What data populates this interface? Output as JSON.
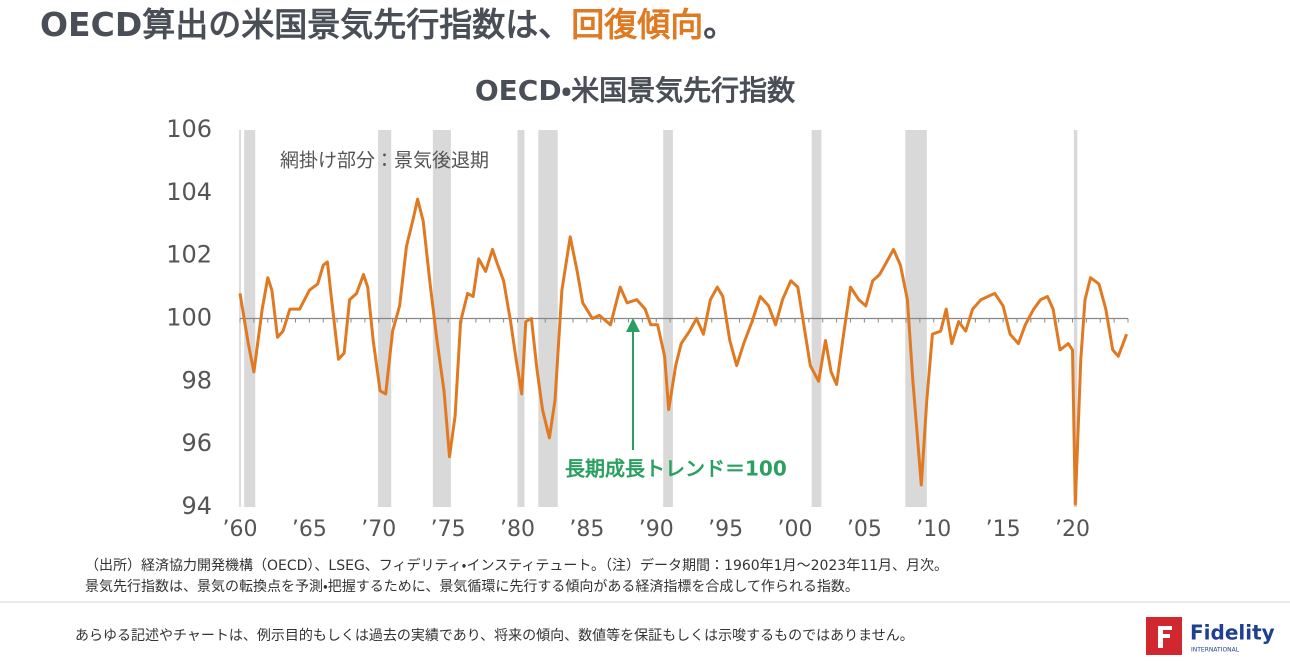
{
  "header": {
    "title_main": "OECD算出の米国景気先行指数は、",
    "title_highlight": "回復傾向",
    "title_end": "。"
  },
  "chart_data": {
    "type": "line",
    "title": "OECD・米国景気先行指数",
    "shading_note": "網掛け部分：景気後退期",
    "trend_note": "長期成長トレンド＝100",
    "reference_line": 100,
    "color": "#e07a22",
    "recession_color": "#d9d9d9",
    "recessions": [
      [
        1960.3,
        1961.1
      ],
      [
        1969.95,
        1970.9
      ],
      [
        1973.9,
        1975.2
      ],
      [
        1980.0,
        1980.5
      ],
      [
        1981.5,
        1982.9
      ],
      [
        1990.5,
        1991.2
      ],
      [
        2001.2,
        2001.9
      ],
      [
        2007.95,
        2009.5
      ],
      [
        2020.1,
        2020.35
      ]
    ],
    "x": [
      1960.0,
      1960.6,
      1961.0,
      1961.6,
      1962.0,
      1962.3,
      1962.7,
      1963.1,
      1963.6,
      1964.3,
      1965.0,
      1965.6,
      1966.0,
      1966.3,
      1966.6,
      1967.1,
      1967.5,
      1967.9,
      1968.4,
      1968.9,
      1969.2,
      1969.6,
      1970.1,
      1970.5,
      1971.0,
      1971.5,
      1972.0,
      1972.5,
      1972.8,
      1973.2,
      1973.7,
      1974.2,
      1974.7,
      1975.1,
      1975.5,
      1975.9,
      1976.4,
      1976.8,
      1977.2,
      1977.7,
      1978.2,
      1978.5,
      1979.0,
      1979.5,
      1979.9,
      1980.3,
      1980.6,
      1981.0,
      1981.4,
      1981.8,
      1982.3,
      1982.7,
      1983.2,
      1983.8,
      1984.3,
      1984.7,
      1985.4,
      1985.9,
      1986.7,
      1987.4,
      1987.9,
      1988.6,
      1989.2,
      1989.6,
      1990.1,
      1990.6,
      1990.9,
      1991.4,
      1991.8,
      1992.4,
      1992.9,
      1993.4,
      1993.9,
      1994.4,
      1994.8,
      1995.3,
      1995.8,
      1996.3,
      1996.9,
      1997.5,
      1998.1,
      1998.6,
      1999.1,
      1999.7,
      2000.2,
      2000.6,
      2001.1,
      2001.7,
      2002.2,
      2002.6,
      2003.0,
      2003.5,
      2004.0,
      2004.6,
      2005.1,
      2005.6,
      2006.1,
      2006.6,
      2007.1,
      2007.6,
      2008.1,
      2008.5,
      2008.9,
      2009.1,
      2009.5,
      2009.9,
      2010.5,
      2010.9,
      2011.3,
      2011.8,
      2012.3,
      2012.8,
      2013.4,
      2013.9,
      2014.4,
      2015.0,
      2015.5,
      2016.1,
      2016.6,
      2017.2,
      2017.7,
      2018.2,
      2018.6,
      2019.1,
      2019.7,
      2020.0,
      2020.2,
      2020.6,
      2020.9,
      2021.3,
      2021.9,
      2022.4,
      2022.9,
      2023.3,
      2023.9
    ],
    "values": [
      100.8,
      99.2,
      98.3,
      100.3,
      101.3,
      100.9,
      99.4,
      99.6,
      100.3,
      100.3,
      100.9,
      101.1,
      101.7,
      101.8,
      100.6,
      98.7,
      98.9,
      100.6,
      100.8,
      101.4,
      101.0,
      99.3,
      97.7,
      97.6,
      99.6,
      100.4,
      102.3,
      103.2,
      103.8,
      103.1,
      101.1,
      99.3,
      97.7,
      95.6,
      96.9,
      99.9,
      100.8,
      100.7,
      101.9,
      101.5,
      102.2,
      101.8,
      101.2,
      99.9,
      98.7,
      97.6,
      99.9,
      100.0,
      98.4,
      97.1,
      96.2,
      97.4,
      100.9,
      102.6,
      101.5,
      100.5,
      100.0,
      100.1,
      99.8,
      101.0,
      100.5,
      100.6,
      100.3,
      99.8,
      99.8,
      98.8,
      97.1,
      98.5,
      99.2,
      99.6,
      100.0,
      99.5,
      100.6,
      101.0,
      100.7,
      99.3,
      98.5,
      99.2,
      99.9,
      100.7,
      100.4,
      99.8,
      100.6,
      101.2,
      101.0,
      99.9,
      98.5,
      98.0,
      99.3,
      98.3,
      97.9,
      99.5,
      101.0,
      100.6,
      100.4,
      101.2,
      101.4,
      101.8,
      102.2,
      101.7,
      100.6,
      98.0,
      95.8,
      94.7,
      97.4,
      99.5,
      99.6,
      100.3,
      99.2,
      99.9,
      99.6,
      100.3,
      100.6,
      100.7,
      100.8,
      100.4,
      99.5,
      99.2,
      99.8,
      100.3,
      100.6,
      100.7,
      100.3,
      99.0,
      99.2,
      99.0,
      94.1,
      98.7,
      100.6,
      101.3,
      101.1,
      100.3,
      99.0,
      98.8,
      99.5
    ],
    "xlim": [
      1960,
      2024
    ],
    "xticks": [
      {
        "value": 1960,
        "label": "’60"
      },
      {
        "value": 1965,
        "label": "’65"
      },
      {
        "value": 1970,
        "label": "’70"
      },
      {
        "value": 1975,
        "label": "’75"
      },
      {
        "value": 1980,
        "label": "’80"
      },
      {
        "value": 1985,
        "label": "’85"
      },
      {
        "value": 1990,
        "label": "’90"
      },
      {
        "value": 1995,
        "label": "’95"
      },
      {
        "value": 2000,
        "label": "’00"
      },
      {
        "value": 2005,
        "label": "’05"
      },
      {
        "value": 2010,
        "label": "’10"
      },
      {
        "value": 2015,
        "label": "’15"
      },
      {
        "value": 2020,
        "label": "’20"
      }
    ],
    "ylim": [
      94,
      106
    ],
    "yticks": [
      94,
      96,
      98,
      100,
      102,
      104,
      106
    ]
  },
  "footnotes": [
    "（出所）経済協力開発機構（OECD）、LSEG、フィデリティ・インスティテュート。（注）データ期間：1960年1月～2023年11月、月次。",
    "景気先行指数は、景気の転換点を予測・把握するために、景気循環に先行する傾向がある経済指標を合成して作られる指数。"
  ],
  "disclaimer": "あらゆる記述やチャートは、例示目的もしくは過去の実績であり、将来の傾向、数値等を保証もしくは示唆するものではありません。",
  "logo": {
    "name": "Fidelity",
    "sub": "INTERNATIONAL"
  }
}
